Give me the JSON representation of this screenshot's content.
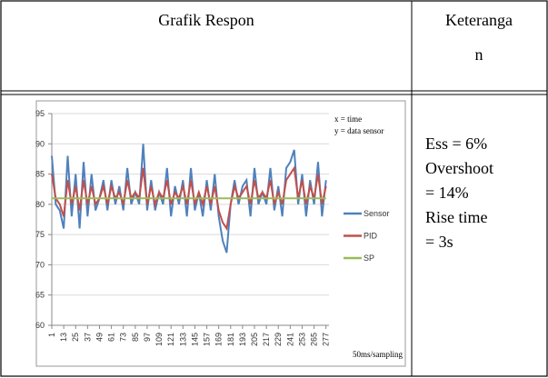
{
  "table": {
    "header": [
      "Grafik Respon",
      "Keteranga",
      "n"
    ],
    "description": {
      "lines": [
        "Ess = 6%",
        "Overshoot",
        "= 14%",
        "Rise time",
        "= 3s"
      ]
    }
  },
  "chart_data": {
    "type": "line",
    "annotations": [
      "x = time",
      "y = data sensor",
      "50ms/sampling"
    ],
    "x": [
      1,
      5,
      9,
      13,
      17,
      21,
      25,
      29,
      33,
      37,
      41,
      45,
      49,
      53,
      57,
      61,
      65,
      69,
      73,
      77,
      81,
      85,
      89,
      93,
      97,
      101,
      105,
      109,
      113,
      117,
      121,
      125,
      129,
      133,
      137,
      141,
      145,
      149,
      153,
      157,
      161,
      165,
      169,
      173,
      177,
      181,
      185,
      189,
      193,
      197,
      201,
      205,
      209,
      213,
      217,
      221,
      225,
      229,
      233,
      237,
      241,
      245,
      249,
      253,
      257,
      261,
      265,
      269,
      273,
      277
    ],
    "series": [
      {
        "name": "Sensor",
        "color": "#4f81bd",
        "values": [
          88,
          80,
          79,
          76,
          88,
          78,
          85,
          76,
          87,
          78,
          85,
          79,
          81,
          84,
          79,
          84,
          80,
          83,
          79,
          86,
          80,
          82,
          80,
          90,
          79,
          84,
          79,
          82,
          80,
          86,
          78,
          83,
          80,
          84,
          78,
          86,
          79,
          82,
          78,
          84,
          79,
          85,
          78,
          74,
          72,
          80,
          84,
          80,
          83,
          84,
          78,
          86,
          80,
          82,
          80,
          86,
          79,
          83,
          78,
          86,
          87,
          89,
          80,
          85,
          78,
          84,
          80,
          87,
          78,
          84
        ]
      },
      {
        "name": "PID",
        "color": "#c0504d",
        "values": [
          85,
          81,
          80,
          78,
          84,
          80,
          83,
          79,
          84,
          80,
          83,
          80,
          81,
          83,
          80,
          83,
          81,
          82,
          80,
          84,
          81,
          82,
          81,
          86,
          80,
          83,
          80,
          82,
          81,
          84,
          80,
          82,
          81,
          83,
          80,
          84,
          80,
          82,
          80,
          83,
          80,
          83,
          79,
          77,
          76,
          80,
          83,
          81,
          82,
          83,
          80,
          84,
          81,
          82,
          81,
          84,
          80,
          82,
          80,
          84,
          85,
          86,
          81,
          84,
          80,
          83,
          81,
          85,
          80,
          83
        ]
      },
      {
        "name": "SP",
        "color": "#9bbb59",
        "values": [
          81,
          81,
          81,
          81,
          81,
          81,
          81,
          81,
          81,
          81,
          81,
          81,
          81,
          81,
          81,
          81,
          81,
          81,
          81,
          81,
          81,
          81,
          81,
          81,
          81,
          81,
          81,
          81,
          81,
          81,
          81,
          81,
          81,
          81,
          81,
          81,
          81,
          81,
          81,
          81,
          81,
          81,
          81,
          81,
          81,
          81,
          81,
          81,
          81,
          81,
          81,
          81,
          81,
          81,
          81,
          81,
          81,
          81,
          81,
          81,
          81,
          81,
          81,
          81,
          81,
          81,
          81,
          81,
          81,
          81
        ]
      }
    ],
    "xlim": [
      1,
      280
    ],
    "xticks": [
      1,
      13,
      25,
      37,
      49,
      61,
      73,
      85,
      97,
      109,
      121,
      133,
      145,
      157,
      169,
      181,
      193,
      205,
      217,
      229,
      241,
      253,
      265,
      277
    ],
    "ylim": [
      60,
      95
    ],
    "yticks": [
      60,
      65,
      70,
      75,
      80,
      85,
      90,
      95
    ],
    "grid": true
  }
}
